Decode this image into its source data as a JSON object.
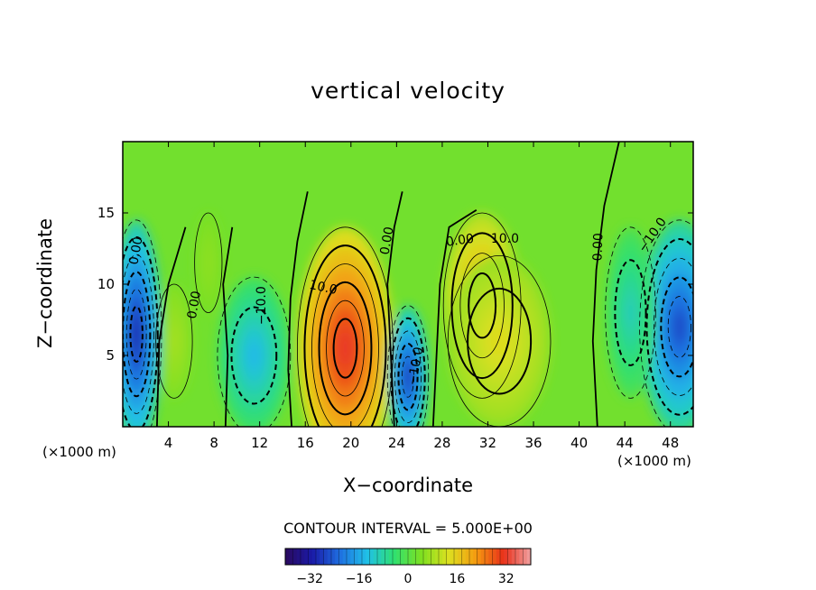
{
  "chart_data": {
    "type": "heatmap",
    "title": "vertical velocity",
    "xlabel": "X−coordinate",
    "ylabel": "Z−coordinate",
    "x_unit": "(×1000 m)",
    "xlim": [
      0,
      50
    ],
    "ylim": [
      0,
      20
    ],
    "xticks": [
      "4",
      "8",
      "12",
      "16",
      "20",
      "24",
      "28",
      "32",
      "36",
      "40",
      "44",
      "48"
    ],
    "yticks": [
      "5",
      "10",
      "15"
    ],
    "contour_interval_label": "CONTOUR INTERVAL = 5.000E+00",
    "colorbar": {
      "range": [
        -40,
        40
      ],
      "ticks": [
        "−32",
        "−16",
        "0",
        "16",
        "32"
      ],
      "colormap": [
        "#2a0a5e",
        "#1a1aa8",
        "#1f6fe0",
        "#20c0e8",
        "#30e070",
        "#7fe020",
        "#dde020",
        "#f59a10",
        "#e8301a",
        "#f0a0a0"
      ]
    },
    "contour_labels": [
      "0.00",
      "10.0",
      "−10.0"
    ],
    "features": [
      {
        "kind": "updraft",
        "x": 19.5,
        "z": 5.5,
        "w": 32
      },
      {
        "kind": "updraft",
        "x": 31.5,
        "z": 8.5,
        "w": 22
      },
      {
        "kind": "updraft",
        "x": 33,
        "z": 6,
        "w": 14
      },
      {
        "kind": "updraft",
        "x": 4.5,
        "z": 6,
        "w": 8
      },
      {
        "kind": "updraft",
        "x": 7.5,
        "z": 11.5,
        "w": 6
      },
      {
        "kind": "downdraft",
        "x": 1.2,
        "z": 6.5,
        "w": -30
      },
      {
        "kind": "downdraft",
        "x": 25,
        "z": 3.5,
        "w": -28
      },
      {
        "kind": "downdraft",
        "x": 48.8,
        "z": 7,
        "w": -26
      },
      {
        "kind": "downdraft",
        "x": 11.5,
        "z": 5,
        "w": -14
      },
      {
        "kind": "downdraft",
        "x": 44.5,
        "z": 8,
        "w": -10
      }
    ]
  }
}
